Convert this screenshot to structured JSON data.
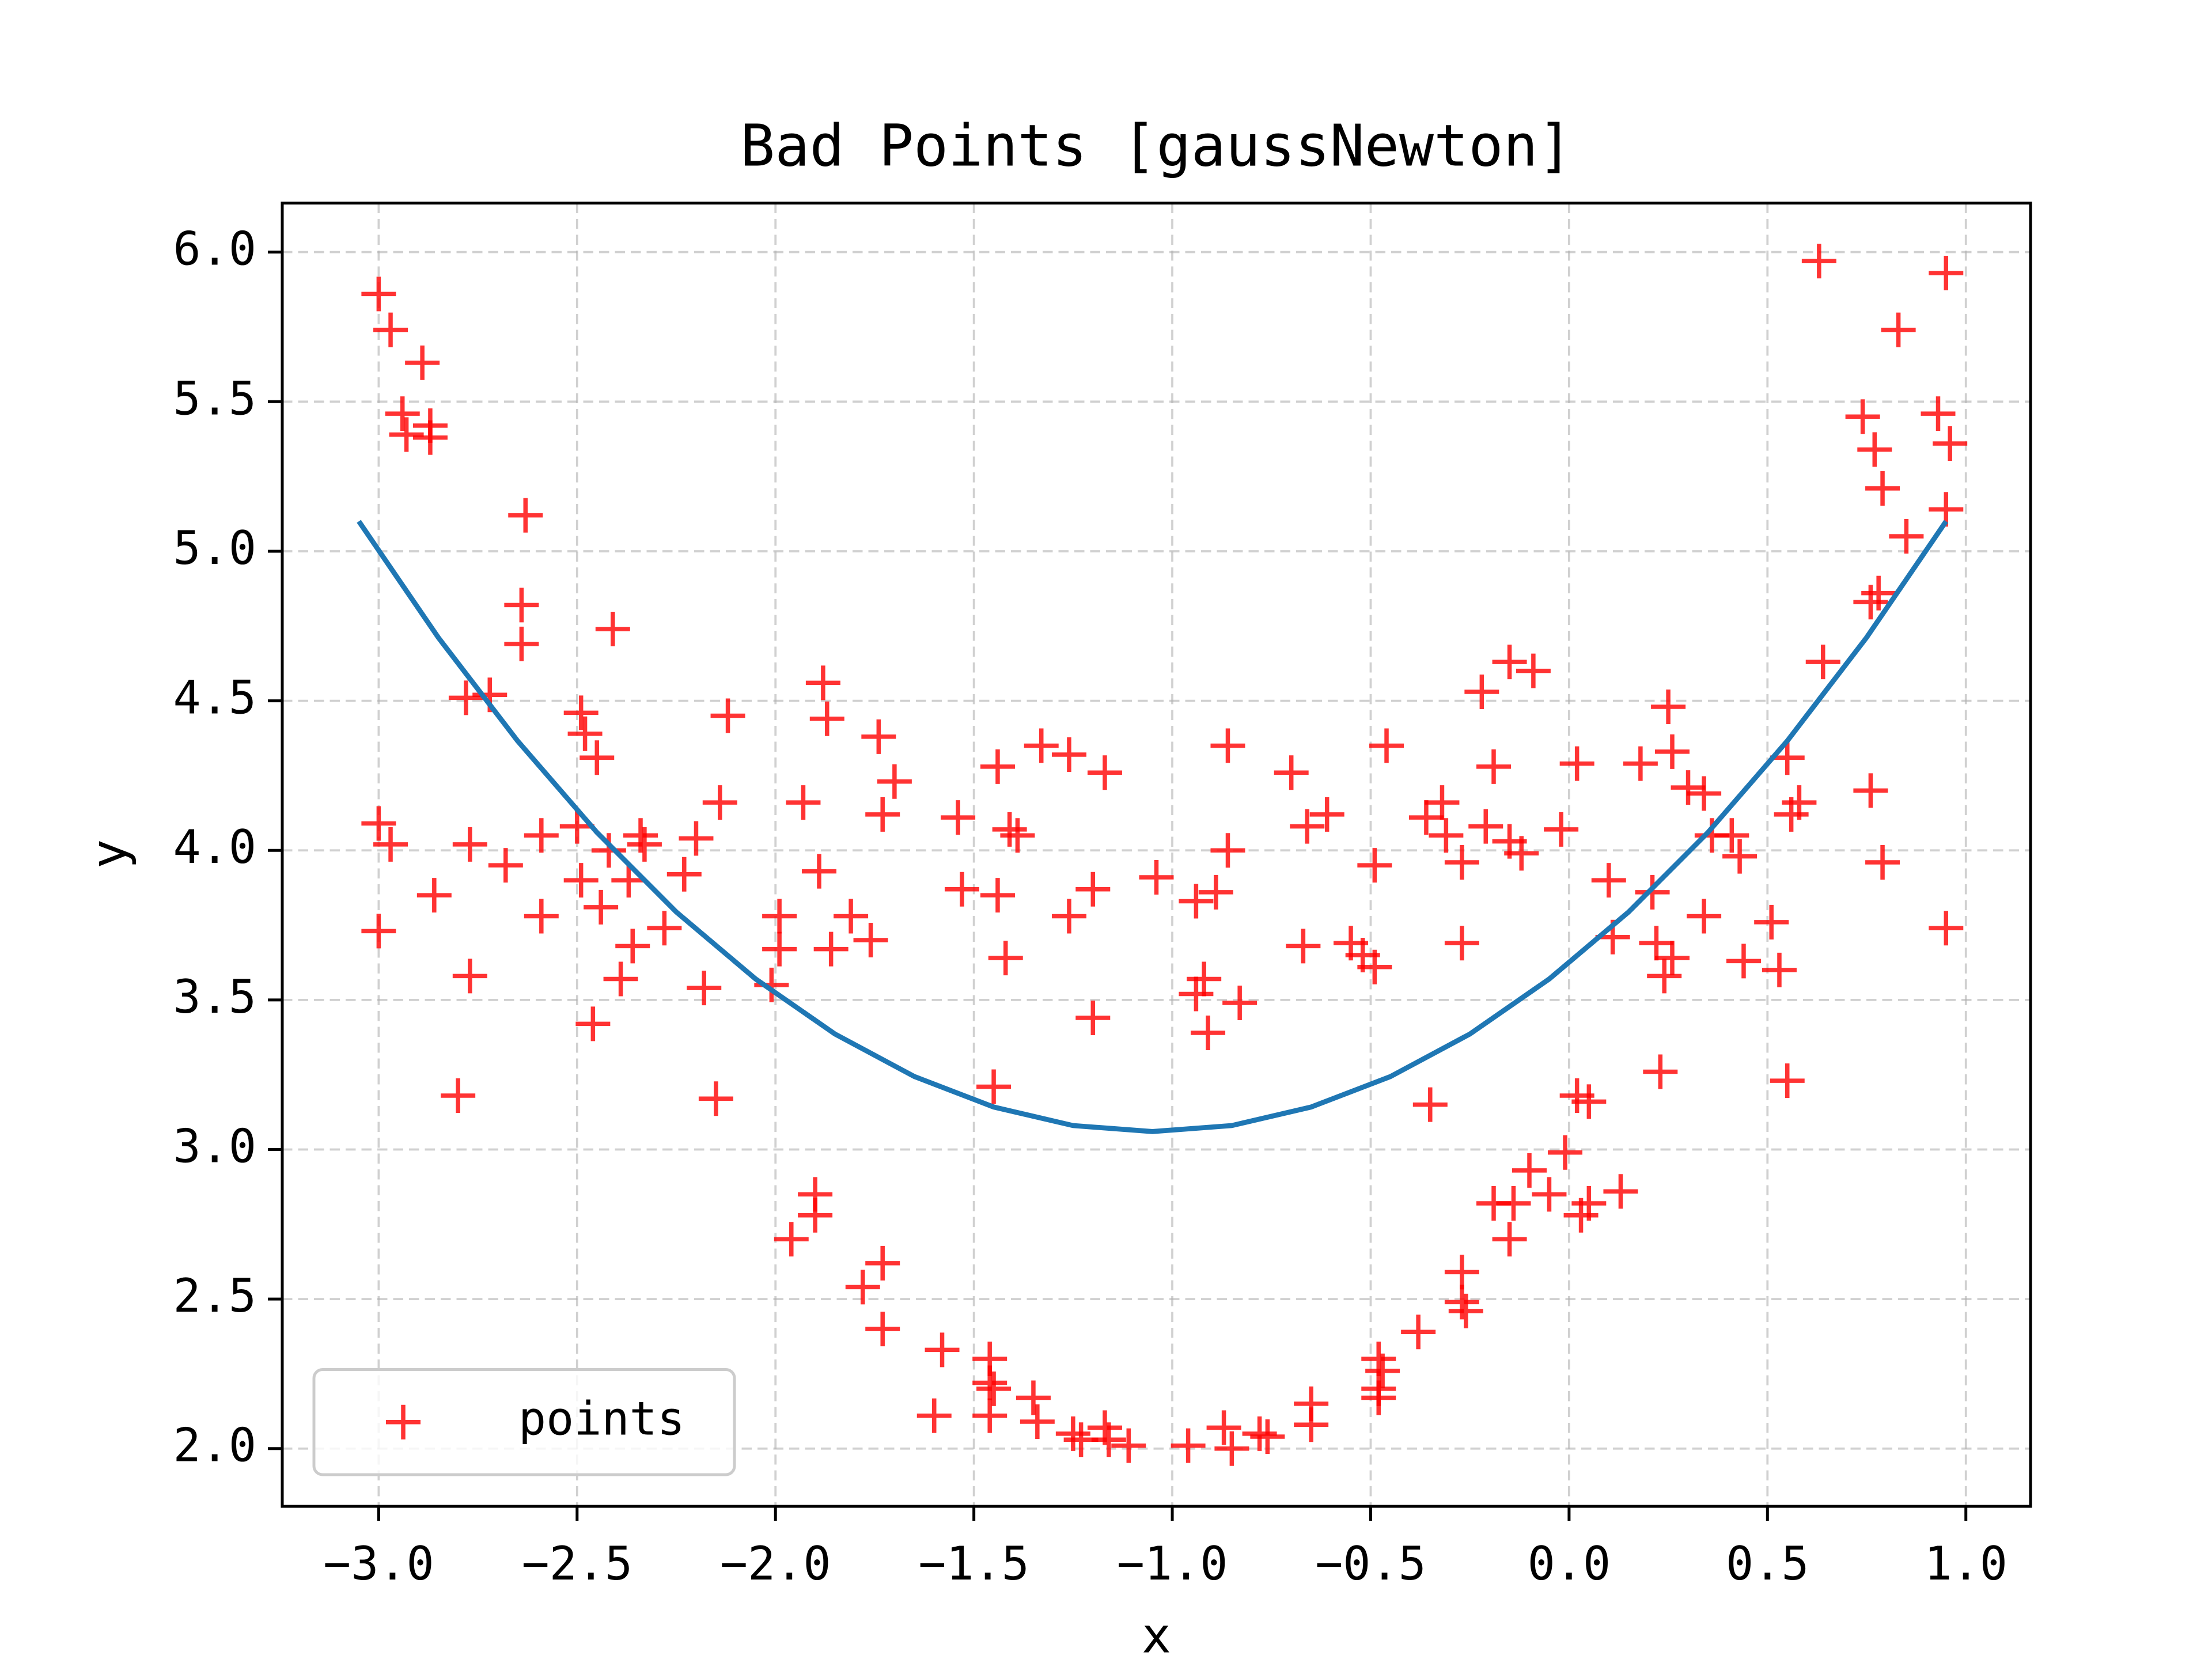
{
  "chart_data": {
    "type": "scatter",
    "title": "Bad Points [gaussNewton]",
    "x_label": "x",
    "y_label": "y",
    "xlim": [
      -3.243,
      1.163
    ],
    "ylim": [
      1.807,
      6.164
    ],
    "xticks": [
      {
        "value": -3,
        "label": "−3.0"
      },
      {
        "value": -2.5,
        "label": "−2.5"
      },
      {
        "value": -2,
        "label": "−2.0"
      },
      {
        "value": -1.5,
        "label": "−1.5"
      },
      {
        "value": -1,
        "label": "−1.0"
      },
      {
        "value": -0.5,
        "label": "−0.5"
      },
      {
        "value": 0,
        "label": "0.0"
      },
      {
        "value": 0.5,
        "label": "0.5"
      },
      {
        "value": 1,
        "label": "1.0"
      }
    ],
    "yticks": [
      {
        "value": 2,
        "label": "2.0"
      },
      {
        "value": 2.5,
        "label": "2.5"
      },
      {
        "value": 3,
        "label": "3.0"
      },
      {
        "value": 3.5,
        "label": "3.5"
      },
      {
        "value": 4,
        "label": "4.0"
      },
      {
        "value": 4.5,
        "label": "4.5"
      },
      {
        "value": 5,
        "label": "5.0"
      },
      {
        "value": 5.5,
        "label": "5.5"
      },
      {
        "value": 6,
        "label": "6.0"
      }
    ],
    "grid": true,
    "legend": "lower left",
    "series": [
      {
        "name": "points",
        "color": "#ff0000",
        "x": [
          -3.0,
          -2.97,
          -2.94,
          -2.93,
          -2.89,
          -2.87,
          -2.87,
          -2.63,
          -2.64,
          -2.64,
          -2.41,
          -2.78,
          -2.72,
          -3.0,
          -2.97,
          -3.0,
          -2.77,
          -2.68,
          -2.86,
          -2.59,
          -2.59,
          -2.77,
          -2.8,
          -2.49,
          -2.48,
          -2.45,
          -2.5,
          -2.49,
          -2.44,
          -2.42,
          -2.46,
          -2.39,
          -2.36,
          -2.34,
          -2.33,
          -2.37,
          -2.28,
          -2.23,
          -2.2,
          -2.18,
          -2.12,
          -2.14,
          -2.15,
          -1.99,
          -1.99,
          -2.01,
          -1.93,
          -1.88,
          -1.87,
          -1.89,
          -1.86,
          -1.81,
          -1.76,
          -1.74,
          -1.7,
          -1.73,
          -1.54,
          -1.53,
          -1.44,
          -1.44,
          -1.42,
          -1.41,
          -1.39,
          -1.33,
          -1.26,
          -1.26,
          -1.2,
          -1.17,
          -1.2,
          -1.45,
          -1.04,
          -0.86,
          -0.94,
          -0.89,
          -0.92,
          -0.94,
          -0.91,
          -0.83,
          -0.86,
          -0.7,
          -0.66,
          -0.61,
          -0.67,
          -0.55,
          -0.52,
          -0.49,
          -0.49,
          -0.46,
          -0.36,
          -0.32,
          -0.31,
          -0.27,
          -0.27,
          -0.22,
          -0.19,
          -0.21,
          -0.15,
          -0.12,
          -0.15,
          -0.09,
          -0.02,
          0.02,
          0.1,
          0.11,
          0.18,
          0.21,
          0.22,
          0.24,
          0.26,
          0.25,
          0.26,
          0.3,
          0.34,
          0.34,
          0.36,
          0.41,
          0.43,
          0.44,
          0.51,
          0.53,
          0.55,
          0.56,
          0.58,
          0.55,
          0.23,
          -0.35,
          0.63,
          0.95,
          0.83,
          0.74,
          0.77,
          0.93,
          0.96,
          0.79,
          0.85,
          0.95,
          0.76,
          0.78,
          0.64,
          0.76,
          0.79,
          0.95,
          -1.9,
          -1.9,
          -1.96,
          -1.73,
          -1.78,
          -1.73,
          -1.58,
          -1.6,
          -1.46,
          -1.46,
          -1.45,
          -1.46,
          -1.35,
          -1.34,
          -1.25,
          -1.23,
          -1.17,
          -1.16,
          -1.11,
          -0.96,
          -0.87,
          -0.85,
          -0.78,
          -0.76,
          -0.65,
          -0.65,
          -0.48,
          -0.47,
          -0.48,
          -0.48,
          -0.38,
          -0.27,
          -0.27,
          -0.26,
          -0.19,
          -0.15,
          -0.14,
          -0.1,
          -0.05,
          -0.01,
          0.02,
          0.05,
          0.03,
          0.05,
          0.13
        ],
        "values": [
          5.86,
          5.74,
          5.46,
          5.39,
          5.63,
          5.42,
          5.38,
          5.12,
          4.82,
          4.69,
          4.74,
          4.51,
          4.52,
          4.09,
          4.02,
          3.73,
          4.02,
          3.95,
          3.85,
          4.05,
          3.78,
          3.58,
          3.18,
          4.46,
          4.39,
          4.31,
          4.08,
          3.9,
          3.81,
          4.0,
          3.42,
          3.57,
          3.68,
          4.05,
          4.02,
          3.9,
          3.74,
          3.92,
          4.04,
          3.54,
          4.45,
          4.16,
          3.17,
          3.78,
          3.67,
          3.55,
          4.16,
          4.56,
          4.44,
          3.93,
          3.67,
          3.78,
          3.7,
          4.38,
          4.23,
          4.12,
          4.11,
          3.87,
          4.28,
          3.85,
          3.64,
          4.07,
          4.05,
          4.35,
          4.32,
          3.78,
          3.87,
          4.26,
          3.44,
          3.21,
          3.91,
          4.35,
          3.83,
          3.86,
          3.57,
          3.52,
          3.39,
          3.49,
          4.0,
          4.26,
          4.08,
          4.12,
          3.68,
          3.69,
          3.65,
          3.61,
          3.95,
          4.35,
          4.11,
          4.16,
          4.05,
          3.96,
          3.69,
          4.53,
          4.28,
          4.08,
          4.03,
          3.99,
          4.63,
          4.6,
          4.07,
          4.29,
          3.9,
          3.71,
          4.29,
          3.86,
          3.69,
          3.58,
          3.64,
          4.48,
          4.33,
          4.21,
          4.19,
          3.78,
          4.05,
          4.05,
          3.98,
          3.63,
          3.76,
          3.6,
          4.31,
          4.12,
          4.16,
          3.23,
          3.26,
          3.15,
          5.97,
          5.93,
          5.74,
          5.45,
          5.34,
          5.46,
          5.36,
          5.21,
          5.05,
          5.14,
          4.83,
          4.86,
          4.63,
          4.2,
          3.96,
          3.74,
          2.85,
          2.78,
          2.7,
          2.62,
          2.54,
          2.4,
          2.33,
          2.11,
          2.3,
          2.22,
          2.2,
          2.11,
          2.17,
          2.09,
          2.05,
          2.03,
          2.07,
          2.03,
          2.01,
          2.01,
          2.07,
          2.0,
          2.05,
          2.04,
          2.15,
          2.08,
          2.3,
          2.26,
          2.2,
          2.17,
          2.39,
          2.59,
          2.49,
          2.46,
          2.82,
          2.7,
          2.82,
          2.93,
          2.85,
          2.99,
          3.18,
          3.16,
          2.78,
          2.82,
          2.86
        ]
      }
    ],
    "curve": {
      "color": "#1f77b4",
      "x": [
        -3.05,
        -2.85,
        -2.65,
        -2.45,
        -2.25,
        -2.05,
        -1.85,
        -1.65,
        -1.45,
        -1.25,
        -1.05,
        -0.85,
        -0.65,
        -0.45,
        -0.25,
        -0.05,
        0.15,
        0.35,
        0.55,
        0.75,
        0.95
      ],
      "y": [
        5.1,
        4.712,
        4.366,
        4.06,
        3.794,
        3.57,
        3.386,
        3.244,
        3.142,
        3.08,
        3.06,
        3.08,
        3.142,
        3.244,
        3.386,
        3.57,
        3.794,
        4.06,
        4.366,
        4.712,
        5.1
      ]
    }
  }
}
